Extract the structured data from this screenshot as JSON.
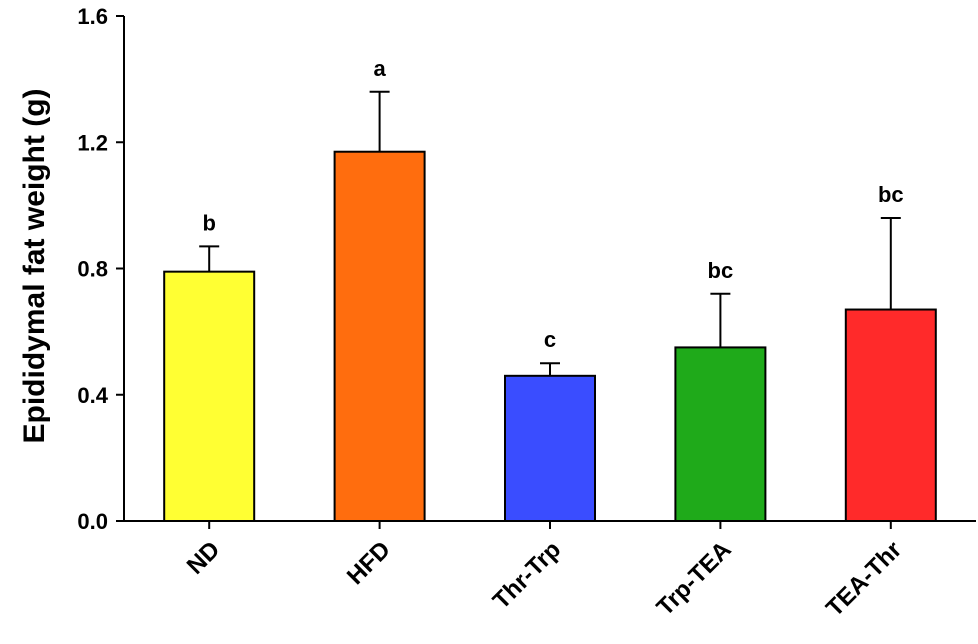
{
  "chart_data": {
    "type": "bar",
    "title": "",
    "xlabel": "",
    "ylabel": "Epididymal fat weight (g)",
    "ylim": [
      0,
      1.6
    ],
    "yticks": [
      "0.0",
      "0.4",
      "0.8",
      "1.2",
      "1.6"
    ],
    "categories": [
      "ND",
      "HFD",
      "Thr-Trp",
      "Trp-TEA",
      "TEA-Thr"
    ],
    "values": [
      0.79,
      1.17,
      0.46,
      0.55,
      0.67
    ],
    "errors": [
      0.08,
      0.19,
      0.04,
      0.17,
      0.29
    ],
    "significance": [
      "b",
      "a",
      "c",
      "bc",
      "bc"
    ],
    "colors": [
      "#ffff33",
      "#ff6d0e",
      "#3a4dff",
      "#1faa1a",
      "#ff2a2a"
    ],
    "grid": false,
    "legend": "none"
  }
}
